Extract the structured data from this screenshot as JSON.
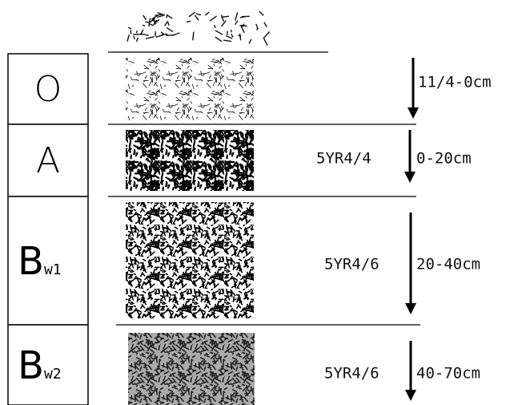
{
  "horizons": [
    {
      "label": "O",
      "depth": "11/4-0cm"
    },
    {
      "label": "A",
      "color": "5YR4/4",
      "depth": "0-20cm"
    },
    {
      "label": "B",
      "subscript": "w1",
      "color": "5YR4/6",
      "depth": "20-40cm"
    },
    {
      "label": "B",
      "subscript": "w2",
      "color": "5YR4/6",
      "depth": "40-70cm"
    }
  ]
}
